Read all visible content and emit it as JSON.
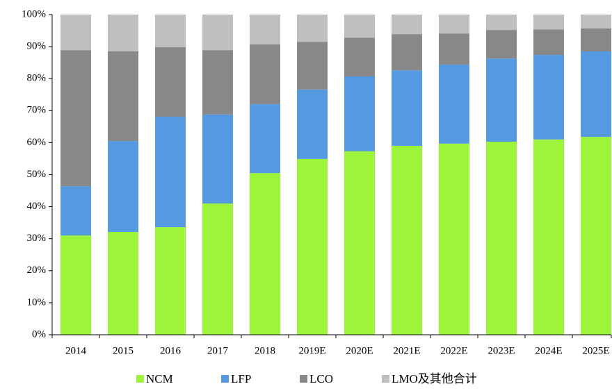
{
  "chart_data": {
    "type": "stacked_bar",
    "categories": [
      "2014",
      "2015",
      "2016",
      "2017",
      "2018",
      "2019E",
      "2020E",
      "2021E",
      "2022E",
      "2023E",
      "2024E",
      "2025E"
    ],
    "series": [
      {
        "name": "NCM",
        "color": "#9cf53a",
        "values": [
          31.0,
          32.1,
          33.6,
          41.0,
          50.5,
          54.9,
          57.3,
          59.0,
          59.7,
          60.3,
          61.0,
          61.8
        ]
      },
      {
        "name": "LFP",
        "color": "#5599e0",
        "values": [
          15.4,
          28.4,
          34.5,
          27.8,
          21.5,
          21.7,
          23.4,
          23.6,
          24.7,
          26.0,
          26.4,
          26.7
        ]
      },
      {
        "name": "LCO",
        "color": "#888888",
        "values": [
          42.5,
          28.0,
          21.7,
          20.1,
          18.7,
          14.9,
          12.1,
          11.3,
          9.7,
          8.9,
          8.0,
          7.2
        ]
      },
      {
        "name": "LMO及其他合计",
        "color": "#bfbfbf",
        "values": [
          11.1,
          11.5,
          10.2,
          11.1,
          9.3,
          8.5,
          7.2,
          6.1,
          5.9,
          4.8,
          4.6,
          4.3
        ]
      }
    ],
    "ylim": [
      0,
      100
    ],
    "yticks": [
      {
        "value": 0,
        "label": "0%"
      },
      {
        "value": 10,
        "label": "10%"
      },
      {
        "value": 20,
        "label": "20%"
      },
      {
        "value": 30,
        "label": "30%"
      },
      {
        "value": 40,
        "label": "40%"
      },
      {
        "value": 50,
        "label": "50%"
      },
      {
        "value": 60,
        "label": "60%"
      },
      {
        "value": 70,
        "label": "70%"
      },
      {
        "value": 80,
        "label": "80%"
      },
      {
        "value": 90,
        "label": "90%"
      },
      {
        "value": 100,
        "label": "100%"
      }
    ],
    "grid": false,
    "legend": "bottom"
  }
}
